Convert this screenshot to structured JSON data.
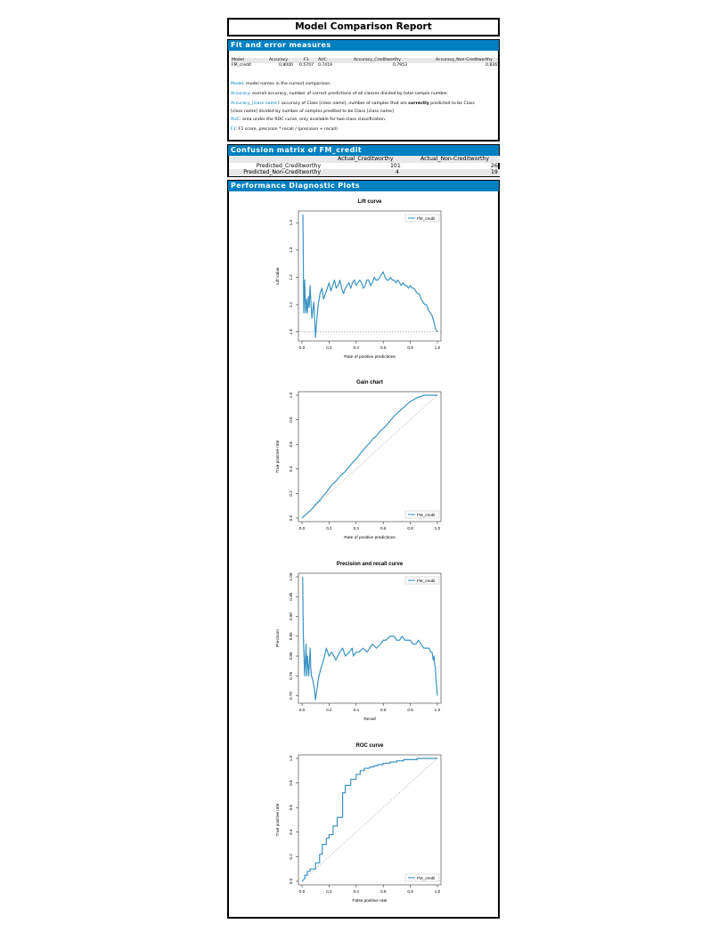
{
  "report": {
    "title": "Model Comparison Report"
  },
  "fit": {
    "heading": "Fit and error measures",
    "columns": [
      "Model",
      "Accuracy",
      "F1",
      "AUC",
      "Accuracy_Creditworthy",
      "Accuracy_Non-Creditworthy"
    ],
    "row": [
      "FM_credit",
      "0.8000",
      "0.5707",
      "0.7419",
      "0.7953",
      "0.8261"
    ],
    "definitions": [
      {
        "term": "Model",
        "text": ": model names in the current comparison."
      },
      {
        "term": "Accuracy",
        "text": ": overall accuracy, number of correct predictions of all classes divided by total sample number."
      },
      {
        "term": "Accuracy_[class name]",
        "text": ": accuracy of Class [class name], number of samples that are ",
        "bold": "correctly",
        "text2": " predicted to be Class"
      },
      {
        "term": "",
        "text": "[class name] divided by number of samples predited to be Class [class name]"
      },
      {
        "term": "AUC",
        "text": ": area under the ROC curve, only available for two-class classification."
      },
      {
        "term": "F1",
        "text": ": F1 score, precision * recall / (precision + recall)"
      }
    ]
  },
  "confusion": {
    "heading": "Confusion matrix of FM_credit",
    "columns": [
      "Actual_Creditworthy",
      "Actual_Non-Creditworthy"
    ],
    "rows": [
      {
        "label": "Predicted_Creditworthy",
        "values": [
          "101",
          "26"
        ]
      },
      {
        "label": "Predicted_Non-Creditworthy",
        "values": [
          "4",
          "19"
        ]
      }
    ]
  },
  "plots": {
    "heading": "Performance Diagnostic Plots"
  },
  "colors": {
    "accent": "#0080c0",
    "series": "#3a93c3"
  },
  "chart_data": [
    {
      "type": "line",
      "title": "Lift curve",
      "xlabel": "Rate of positive predictions",
      "ylabel": "Lift value",
      "xlim": [
        0,
        1
      ],
      "ylim": [
        0.98,
        1.43
      ],
      "xticks": [
        "0.0",
        "0.2",
        "0.4",
        "0.6",
        "0.8",
        "1.0"
      ],
      "yticks": [
        "1.0",
        "1.1",
        "1.2",
        "1.3",
        "1.4"
      ],
      "legend": "top-right",
      "reference": {
        "type": "hline",
        "y": 1.0
      },
      "series": [
        {
          "name": "FM_credit",
          "x": [
            0.007,
            0.013,
            0.02,
            0.027,
            0.033,
            0.04,
            0.047,
            0.053,
            0.06,
            0.067,
            0.073,
            0.08,
            0.087,
            0.093,
            0.1,
            0.107,
            0.12,
            0.133,
            0.147,
            0.16,
            0.173,
            0.187,
            0.2,
            0.213,
            0.227,
            0.24,
            0.253,
            0.267,
            0.28,
            0.293,
            0.307,
            0.32,
            0.333,
            0.347,
            0.36,
            0.373,
            0.387,
            0.4,
            0.413,
            0.427,
            0.44,
            0.453,
            0.467,
            0.48,
            0.493,
            0.507,
            0.52,
            0.533,
            0.547,
            0.56,
            0.573,
            0.587,
            0.6,
            0.613,
            0.627,
            0.64,
            0.653,
            0.667,
            0.68,
            0.693,
            0.707,
            0.72,
            0.733,
            0.747,
            0.76,
            0.773,
            0.787,
            0.8,
            0.813,
            0.827,
            0.84,
            0.853,
            0.867,
            0.88,
            0.893,
            0.907,
            0.92,
            0.933,
            0.947,
            0.96,
            0.973,
            0.987,
            1.0
          ],
          "y": [
            1.43,
            1.07,
            1.19,
            1.07,
            1.12,
            1.07,
            1.13,
            1.09,
            1.17,
            1.1,
            1.05,
            1.08,
            1.11,
            1.05,
            0.98,
            1.03,
            1.1,
            1.14,
            1.16,
            1.12,
            1.14,
            1.16,
            1.18,
            1.15,
            1.17,
            1.19,
            1.16,
            1.17,
            1.19,
            1.16,
            1.14,
            1.16,
            1.17,
            1.18,
            1.16,
            1.18,
            1.19,
            1.17,
            1.18,
            1.19,
            1.18,
            1.16,
            1.17,
            1.19,
            1.19,
            1.17,
            1.18,
            1.2,
            1.19,
            1.19,
            1.2,
            1.21,
            1.22,
            1.2,
            1.19,
            1.19,
            1.2,
            1.19,
            1.19,
            1.18,
            1.19,
            1.18,
            1.17,
            1.18,
            1.17,
            1.17,
            1.16,
            1.17,
            1.16,
            1.16,
            1.15,
            1.14,
            1.14,
            1.12,
            1.11,
            1.1,
            1.1,
            1.08,
            1.07,
            1.06,
            1.04,
            1.01,
            1.0
          ]
        }
      ]
    },
    {
      "type": "line",
      "title": "Gain chart",
      "xlabel": "Rate of positive predictions",
      "ylabel": "True positive rate",
      "xlim": [
        0,
        1
      ],
      "ylim": [
        0,
        1
      ],
      "xticks": [
        "0.0",
        "0.2",
        "0.4",
        "0.6",
        "0.8",
        "1.0"
      ],
      "yticks": [
        "0.0",
        "0.2",
        "0.4",
        "0.6",
        "0.8",
        "1.0"
      ],
      "legend": "bottom-right",
      "reference": {
        "type": "diagonal"
      },
      "series": [
        {
          "name": "FM_credit",
          "x": [
            0,
            0.02,
            0.05,
            0.08,
            0.1,
            0.12,
            0.15,
            0.18,
            0.2,
            0.22,
            0.25,
            0.28,
            0.3,
            0.32,
            0.35,
            0.38,
            0.4,
            0.42,
            0.45,
            0.48,
            0.5,
            0.52,
            0.55,
            0.58,
            0.6,
            0.62,
            0.65,
            0.68,
            0.7,
            0.72,
            0.75,
            0.78,
            0.8,
            0.82,
            0.85,
            0.88,
            0.9,
            0.92,
            0.95,
            0.97,
            1.0
          ],
          "y": [
            0,
            0.02,
            0.05,
            0.08,
            0.11,
            0.13,
            0.17,
            0.21,
            0.24,
            0.27,
            0.3,
            0.34,
            0.36,
            0.38,
            0.42,
            0.46,
            0.48,
            0.51,
            0.55,
            0.59,
            0.61,
            0.64,
            0.67,
            0.71,
            0.73,
            0.75,
            0.79,
            0.83,
            0.85,
            0.87,
            0.9,
            0.93,
            0.95,
            0.96,
            0.98,
            0.99,
            1.0,
            1.0,
            1.0,
            1.0,
            1.0
          ]
        }
      ]
    },
    {
      "type": "line",
      "title": "Precision and recall curve",
      "xlabel": "Recall",
      "ylabel": "Precision",
      "xlim": [
        0,
        1
      ],
      "ylim": [
        0.69,
        1.0
      ],
      "xticks": [
        "0.0",
        "0.2",
        "0.4",
        "0.6",
        "0.8",
        "1.0"
      ],
      "yticks": [
        "0.70",
        "0.75",
        "0.80",
        "0.85",
        "0.90",
        "0.95",
        "1.00"
      ],
      "legend": "top-right",
      "series": [
        {
          "name": "FM_credit",
          "x": [
            0.005,
            0.01,
            0.02,
            0.03,
            0.035,
            0.04,
            0.05,
            0.06,
            0.065,
            0.07,
            0.08,
            0.09,
            0.1,
            0.12,
            0.14,
            0.16,
            0.18,
            0.2,
            0.22,
            0.25,
            0.28,
            0.3,
            0.32,
            0.35,
            0.37,
            0.38,
            0.4,
            0.42,
            0.45,
            0.48,
            0.5,
            0.52,
            0.55,
            0.58,
            0.6,
            0.62,
            0.65,
            0.68,
            0.7,
            0.72,
            0.74,
            0.76,
            0.78,
            0.8,
            0.82,
            0.84,
            0.86,
            0.88,
            0.9,
            0.92,
            0.94,
            0.95,
            0.96,
            0.965,
            0.97,
            0.975,
            0.98,
            0.985,
            0.99,
            1.0
          ],
          "y": [
            1.0,
            0.85,
            0.75,
            0.83,
            0.75,
            0.8,
            0.75,
            0.82,
            0.77,
            0.75,
            0.74,
            0.72,
            0.69,
            0.74,
            0.77,
            0.79,
            0.82,
            0.8,
            0.81,
            0.79,
            0.81,
            0.82,
            0.8,
            0.81,
            0.82,
            0.8,
            0.81,
            0.81,
            0.82,
            0.81,
            0.82,
            0.83,
            0.82,
            0.83,
            0.84,
            0.84,
            0.85,
            0.85,
            0.84,
            0.84,
            0.85,
            0.84,
            0.84,
            0.84,
            0.83,
            0.83,
            0.84,
            0.83,
            0.82,
            0.82,
            0.82,
            0.81,
            0.81,
            0.8,
            0.79,
            0.8,
            0.78,
            0.77,
            0.74,
            0.7
          ]
        }
      ]
    },
    {
      "type": "line",
      "title": "ROC curve",
      "xlabel": "False positive rate",
      "ylabel": "True positive rate",
      "xlim": [
        0,
        1
      ],
      "ylim": [
        0,
        1
      ],
      "xticks": [
        "0.0",
        "0.2",
        "0.4",
        "0.6",
        "0.8",
        "1.0"
      ],
      "yticks": [
        "0.0",
        "0.2",
        "0.4",
        "0.6",
        "0.8",
        "1.0"
      ],
      "legend": "bottom-right",
      "reference": {
        "type": "diagonal"
      },
      "series": [
        {
          "name": "FM_credit",
          "x": [
            0,
            0.02,
            0.02,
            0.04,
            0.04,
            0.06,
            0.06,
            0.1,
            0.1,
            0.13,
            0.13,
            0.15,
            0.15,
            0.18,
            0.18,
            0.2,
            0.2,
            0.23,
            0.23,
            0.26,
            0.26,
            0.3,
            0.3,
            0.32,
            0.32,
            0.36,
            0.36,
            0.4,
            0.4,
            0.43,
            0.43,
            0.46,
            0.46,
            0.5,
            0.5,
            0.53,
            0.53,
            0.56,
            0.56,
            0.6,
            0.6,
            0.65,
            0.65,
            0.7,
            0.7,
            0.75,
            0.75,
            0.85,
            0.85,
            0.95,
            0.95,
            1.0
          ],
          "y": [
            0,
            0.02,
            0.05,
            0.05,
            0.08,
            0.08,
            0.1,
            0.1,
            0.15,
            0.15,
            0.22,
            0.22,
            0.3,
            0.3,
            0.35,
            0.35,
            0.38,
            0.38,
            0.45,
            0.45,
            0.52,
            0.52,
            0.72,
            0.72,
            0.78,
            0.78,
            0.83,
            0.83,
            0.87,
            0.87,
            0.9,
            0.9,
            0.92,
            0.92,
            0.93,
            0.93,
            0.94,
            0.94,
            0.95,
            0.95,
            0.96,
            0.96,
            0.97,
            0.97,
            0.98,
            0.98,
            0.99,
            0.99,
            1.0,
            1.0,
            1.0,
            1.0
          ]
        }
      ]
    }
  ]
}
